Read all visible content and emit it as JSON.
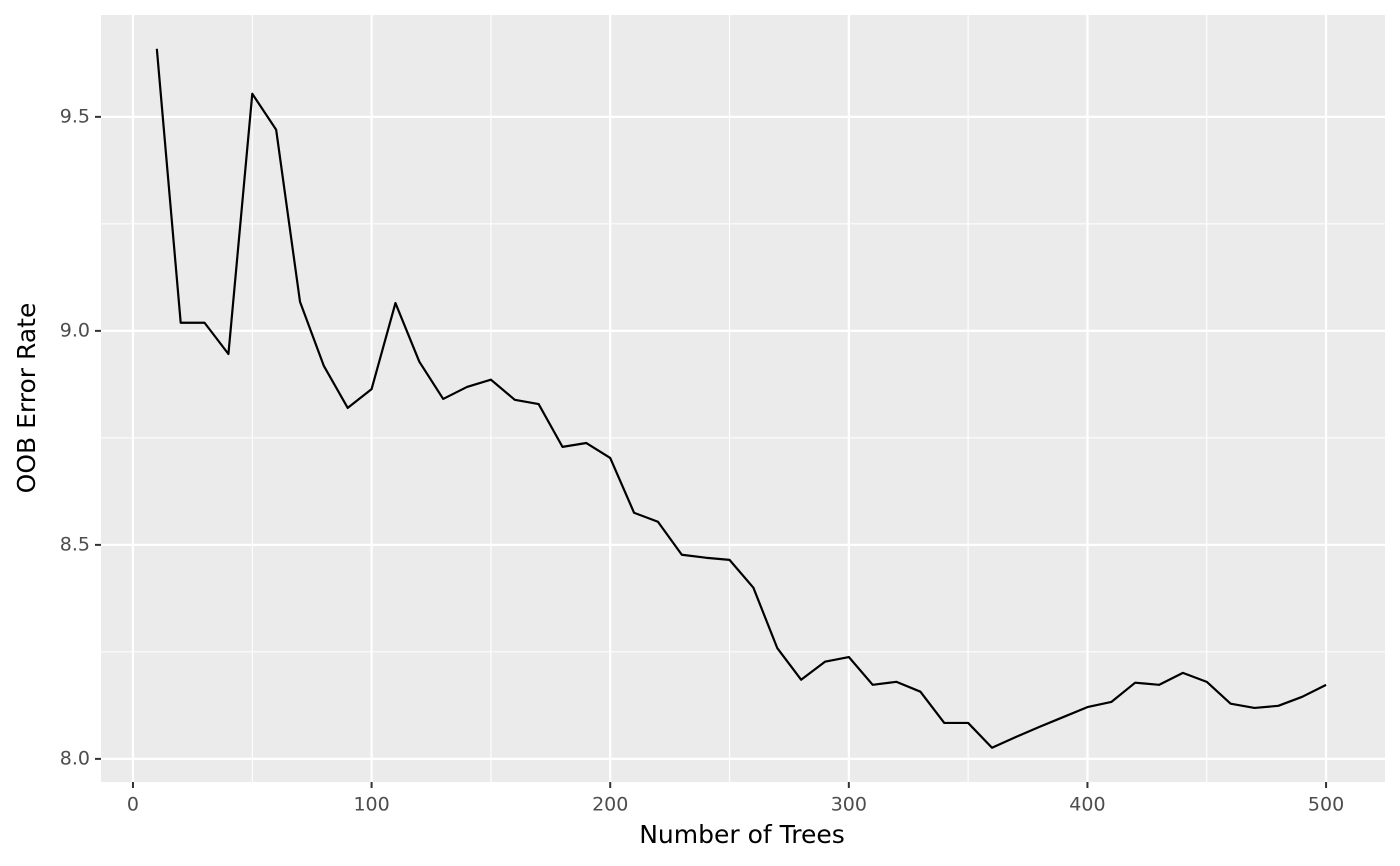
{
  "chart_data": {
    "type": "line",
    "x_label": "Number of Trees",
    "y_label": "OOB Error Rate",
    "x": [
      10,
      20,
      30,
      40,
      50,
      60,
      70,
      80,
      90,
      100,
      110,
      120,
      130,
      140,
      150,
      160,
      170,
      180,
      190,
      200,
      210,
      220,
      230,
      240,
      250,
      260,
      270,
      280,
      290,
      300,
      310,
      320,
      330,
      340,
      350,
      360,
      370,
      380,
      390,
      400,
      410,
      420,
      430,
      440,
      450,
      460,
      470,
      480,
      490,
      500
    ],
    "series": [
      {
        "color": "#000000",
        "values": [
          9.659,
          9.019,
          9.019,
          8.946,
          9.554,
          9.47,
          9.068,
          8.918,
          8.82,
          8.864,
          9.065,
          8.928,
          8.841,
          8.869,
          8.886,
          8.839,
          8.829,
          8.729,
          8.738,
          8.703,
          8.575,
          8.554,
          8.477,
          8.47,
          8.465,
          8.4,
          8.259,
          8.185,
          8.227,
          8.238,
          8.173,
          8.18,
          8.157,
          8.084,
          8.084,
          8.026,
          8.051,
          8.075,
          8.098,
          8.121,
          8.133,
          8.178,
          8.173,
          8.201,
          8.18,
          8.129,
          8.119,
          8.124,
          8.145,
          8.173
        ]
      }
    ],
    "xlim": [
      -13.4,
      524.7
    ],
    "ylim": [
      7.946,
      9.738
    ],
    "xticks": [
      0,
      100,
      200,
      300,
      400,
      500
    ],
    "yticks": [
      {
        "value": 8,
        "label": "8.0"
      },
      8.5,
      {
        "value": 9,
        "label": "9.0"
      },
      9.5
    ],
    "xminor": [
      50,
      150,
      250,
      350,
      450
    ],
    "yminor": [
      8.25,
      8.75,
      9.25
    ],
    "grid": true,
    "panel_color": "#ebebeb"
  }
}
